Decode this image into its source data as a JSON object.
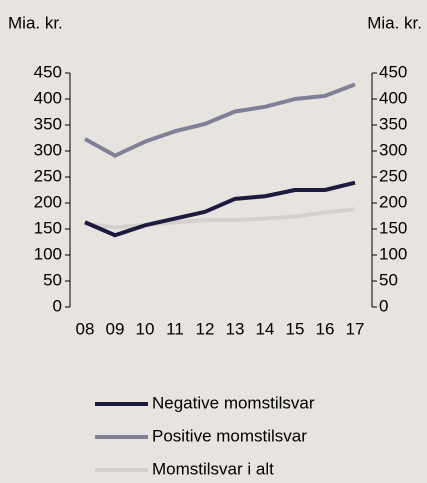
{
  "chart_data": {
    "type": "line",
    "ylabel": "Mia. kr.",
    "y2label": "Mia. kr.",
    "categories": [
      "08",
      "09",
      "10",
      "11",
      "12",
      "13",
      "14",
      "15",
      "16",
      "17"
    ],
    "series": [
      {
        "name": "Negative momstilsvar",
        "color": "#1c1a3e",
        "values": [
          163,
          138,
          157,
          170,
          183,
          208,
          213,
          225,
          225,
          239
        ]
      },
      {
        "name": "Positive momstilsvar",
        "color": "#7f7f96",
        "values": [
          323,
          291,
          318,
          338,
          352,
          376,
          385,
          400,
          406,
          428
        ]
      },
      {
        "name": "Momstilsvar i alt",
        "color": "#d6d0cc",
        "values": [
          160,
          153,
          158,
          163,
          167,
          167,
          170,
          174,
          182,
          188
        ]
      }
    ],
    "ylim": [
      0,
      450
    ],
    "yticks": [
      0,
      50,
      100,
      150,
      200,
      250,
      300,
      350,
      400,
      450
    ],
    "y2lim": [
      0,
      450
    ],
    "y2ticks": [
      0,
      50,
      100,
      150,
      200,
      250,
      300,
      350,
      400,
      450
    ]
  }
}
